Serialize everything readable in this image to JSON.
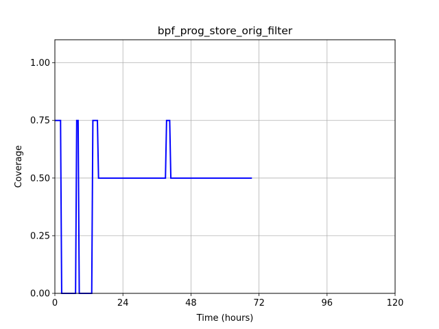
{
  "chart_data": {
    "type": "line",
    "title": "bpf_prog_store_orig_filter",
    "xlabel": "Time (hours)",
    "ylabel": "Coverage",
    "xlim": [
      0,
      120
    ],
    "ylim": [
      0,
      1.1
    ],
    "x_ticks": [
      0,
      24,
      48,
      72,
      96,
      120
    ],
    "y_ticks": [
      0.0,
      0.25,
      0.5,
      0.75,
      1.0
    ],
    "x_tick_labels": [
      "0",
      "24",
      "48",
      "72",
      "96",
      "120"
    ],
    "y_tick_labels": [
      "0.00",
      "0.25",
      "0.50",
      "0.75",
      "1.00"
    ],
    "grid": true,
    "line_color": "#0000ff",
    "series": [
      {
        "x": [
          0,
          2.0,
          2.4,
          7.3,
          7.7,
          8.2,
          8.6,
          13.0,
          13.4,
          15.0,
          15.4,
          39.0,
          39.4,
          40.5,
          40.9,
          69.5
        ],
        "y": [
          0.75,
          0.75,
          0.0,
          0.0,
          0.75,
          0.75,
          0.0,
          0.0,
          0.75,
          0.75,
          0.5,
          0.5,
          0.75,
          0.75,
          0.5,
          0.5
        ]
      }
    ]
  }
}
